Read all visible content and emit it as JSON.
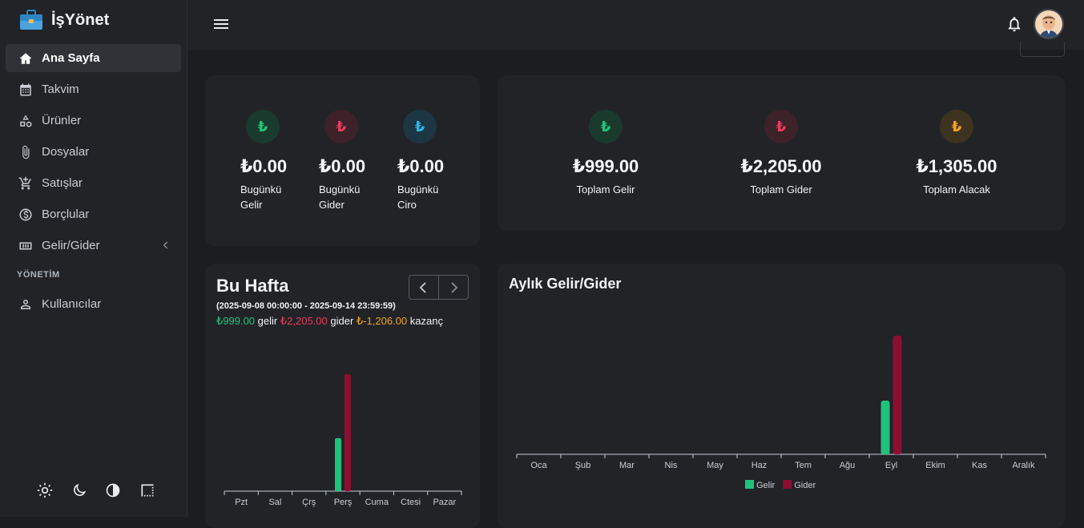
{
  "app": {
    "name": "İşYönet"
  },
  "sidebar": {
    "items": [
      {
        "label": "Ana Sayfa",
        "icon": "home-icon",
        "active": true
      },
      {
        "label": "Takvim",
        "icon": "calendar-icon"
      },
      {
        "label": "Ürünler",
        "icon": "shapes-icon"
      },
      {
        "label": "Dosyalar",
        "icon": "paperclip-icon"
      },
      {
        "label": "Satışlar",
        "icon": "cart-icon"
      },
      {
        "label": "Borçlular",
        "icon": "dollar-circle-icon"
      },
      {
        "label": "Gelir/Gider",
        "icon": "cash-icon",
        "has_submenu": true
      }
    ],
    "section_label": "YÖNETİM",
    "admin_items": [
      {
        "label": "Kullanıcılar",
        "icon": "user-icon"
      }
    ],
    "theme_icons": [
      "sun-icon",
      "moon-icon",
      "contrast-icon",
      "border-icon"
    ]
  },
  "daily": [
    {
      "symbol": "₺",
      "value": "₺0.00",
      "label": "Bugünkü Gelir",
      "color": "#20c47a",
      "bg": "#1b3a2e"
    },
    {
      "symbol": "₺",
      "value": "₺0.00",
      "label": "Bugünkü Gider",
      "color": "#e83a5c",
      "bg": "#3d2229"
    },
    {
      "symbol": "₺",
      "value": "₺0.00",
      "label": "Bugünkü Ciro",
      "color": "#2bb6e8",
      "bg": "#1d3643"
    }
  ],
  "totals": [
    {
      "symbol": "₺",
      "value": "₺999.00",
      "label": "Toplam Gelir",
      "color": "#20c47a",
      "bg": "#1b3a2e"
    },
    {
      "symbol": "₺",
      "value": "₺2,205.00",
      "label": "Toplam Gider",
      "color": "#e83a5c",
      "bg": "#3d2229"
    },
    {
      "symbol": "₺",
      "value": "₺1,305.00",
      "label": "Toplam Alacak",
      "color": "#f0a524",
      "bg": "#3d3320"
    }
  ],
  "week": {
    "title": "Bu Hafta",
    "range": "(2025-09-08 00:00:00 - 2025-09-14 23:59:59)",
    "income": "₺999.00",
    "income_word": "gelir",
    "expense": "₺2,205.00",
    "expense_word": "gider",
    "profit": "₺-1,206.00",
    "profit_word": "kazanç"
  },
  "monthly": {
    "title": "Aylık Gelir/Gider"
  },
  "colors": {
    "income": "#1fc17c",
    "expense": "#8b0f30"
  },
  "chart_data": [
    {
      "type": "bar",
      "title": "Bu Hafta",
      "categories": [
        "Pzt",
        "Sal",
        "Çrş",
        "Perş",
        "Cuma",
        "Ctesi",
        "Pazar"
      ],
      "series": [
        {
          "values": [
            0,
            0,
            0,
            999,
            0,
            0,
            0
          ]
        },
        {
          "values": [
            0,
            0,
            0,
            2205,
            0,
            0,
            0
          ]
        }
      ],
      "ylim": [
        0,
        2205
      ],
      "grid": false
    },
    {
      "type": "bar",
      "title": "Aylık Gelir/Gider",
      "categories": [
        "Oca",
        "Şub",
        "Mar",
        "Nis",
        "May",
        "Haz",
        "Tem",
        "Ağu",
        "Eyl",
        "Ekim",
        "Kas",
        "Aralık"
      ],
      "series": [
        {
          "name": "Gelir",
          "values": [
            0,
            0,
            0,
            0,
            0,
            0,
            0,
            0,
            999,
            0,
            0,
            0
          ]
        },
        {
          "name": "Gider",
          "values": [
            0,
            0,
            0,
            0,
            0,
            0,
            0,
            0,
            2205,
            0,
            0,
            0
          ]
        }
      ],
      "ylim": [
        0,
        2205
      ],
      "legend": "bottom",
      "grid": false
    }
  ]
}
